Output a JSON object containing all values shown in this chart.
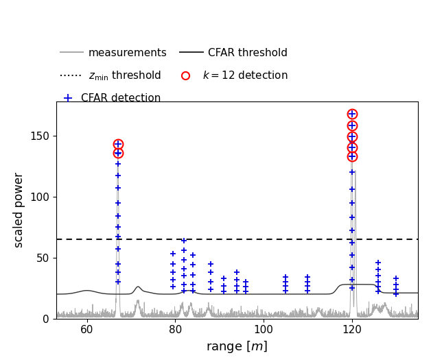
{
  "xlabel": "range $[m]$",
  "ylabel": "scaled power",
  "xlim": [
    53,
    135
  ],
  "ylim": [
    0,
    178
  ],
  "yticks": [
    0,
    50,
    100,
    150
  ],
  "xticks": [
    60,
    80,
    100,
    120
  ],
  "zmin_threshold": 65,
  "gray_line_color": "#aaaaaa",
  "cfar_threshold_color": "#333333",
  "cfar_detection_color": "#0000dd",
  "k12_detection_color": "#ff0000",
  "figsize": [
    6.28,
    5.28
  ],
  "dpi": 100,
  "cfar_det_x": [
    67.0,
    67.0,
    67.0,
    67.0,
    67.0,
    67.0,
    67.0,
    67.0,
    67.0,
    67.0,
    67.0,
    67.0,
    79.5,
    79.5,
    79.5,
    79.5,
    79.5,
    82.0,
    82.0,
    82.0,
    82.0,
    82.0,
    82.0,
    82.0,
    84.0,
    84.0,
    84.0,
    84.0,
    84.0,
    88.0,
    88.0,
    88.0,
    88.0,
    91.0,
    91.0,
    91.0,
    94.0,
    94.0,
    94.0,
    94.0,
    96.0,
    96.0,
    96.0,
    105.0,
    105.0,
    105.0,
    105.0,
    110.0,
    110.0,
    110.0,
    110.0,
    120.0,
    120.0,
    120.0,
    120.0,
    120.0,
    120.0,
    120.0,
    120.0,
    120.0,
    120.0,
    120.0,
    120.0,
    126.0,
    126.0,
    126.0,
    126.0,
    126.0,
    126.0,
    130.0,
    130.0,
    130.0,
    130.0
  ],
  "cfar_det_y": [
    30,
    38,
    45,
    57,
    67,
    75,
    84,
    95,
    107,
    117,
    127,
    135,
    26,
    32,
    38,
    45,
    53,
    23,
    28,
    35,
    41,
    48,
    56,
    64,
    23,
    28,
    36,
    44,
    52,
    24,
    30,
    38,
    45,
    22,
    27,
    33,
    23,
    27,
    32,
    38,
    22,
    26,
    30,
    23,
    27,
    30,
    34,
    23,
    27,
    30,
    34,
    25,
    32,
    42,
    52,
    62,
    72,
    83,
    95,
    106,
    120,
    133,
    145,
    22,
    26,
    30,
    35,
    40,
    46,
    20,
    24,
    28,
    33
  ],
  "k12_x": [
    67.0,
    67.0,
    120.0,
    120.0,
    120.0,
    120.0,
    120.0
  ],
  "k12_y": [
    143,
    136,
    168,
    158,
    149,
    140,
    133
  ]
}
